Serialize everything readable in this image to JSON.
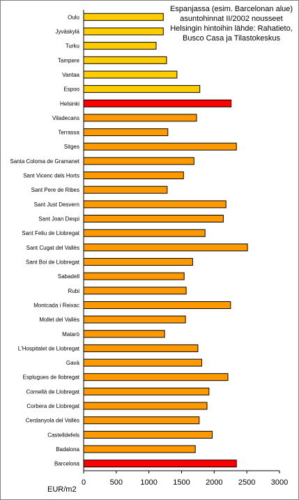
{
  "chart_data": {
    "type": "bar",
    "orientation": "horizontal",
    "annotation_lines": [
      "Espanjassa (esim. Barcelonan alue)",
      "asuntohinnat II/2002 nousseet",
      "Helsingin hintoihin lähde: Rahatieto,",
      "Busco Casa ja Tilastokeskus"
    ],
    "xlabel": "EUR/m2",
    "xlim": [
      0,
      3000
    ],
    "xticks": [
      "0",
      "500",
      "1000",
      "1500",
      "2000",
      "2500",
      "3000"
    ],
    "grid": false,
    "categories": [
      "Oulu",
      "Jyväskylä",
      "Turku",
      "Tampere",
      "Vantaa",
      "Espoo",
      "Helsinki",
      "Viladecans",
      "Terrassa",
      "Sitges",
      "Santa Coloma de Gramanet",
      "Sant Vicenc dels Horts",
      "Sant Pere de Ribes",
      "Sant Just Desvern",
      "Sant Joan Despi",
      "Sant Feliu de Llobregat",
      "Sant Cugat del Vallès",
      "Sant Boi de Llobregat",
      "Sabadell",
      "Rubi",
      "Montcada i Reixac",
      "Mollet del Vallès",
      "Matarò",
      "L'Hospitalet de Llobregat",
      "Gavà",
      "Esplugues de llobregat",
      "Cornellà de Llobregat",
      "Corbera de Llobregat",
      "Cerdanyola del Vallès",
      "Castelldefels",
      "Badalona",
      "Barcelona"
    ],
    "values": [
      1220,
      1220,
      1110,
      1270,
      1430,
      1780,
      2260,
      1730,
      1290,
      2340,
      1690,
      1530,
      1280,
      2180,
      2140,
      1860,
      2510,
      1670,
      1540,
      1570,
      2250,
      1560,
      1240,
      1750,
      1810,
      2210,
      1920,
      1890,
      1770,
      1970,
      1710,
      2340
    ],
    "colors": [
      "yellow",
      "yellow",
      "yellow",
      "yellow",
      "yellow",
      "yellow",
      "red",
      "orange",
      "orange",
      "orange",
      "orange",
      "orange",
      "orange",
      "orange",
      "orange",
      "orange",
      "orange",
      "orange",
      "orange",
      "orange",
      "orange",
      "orange",
      "orange",
      "orange",
      "orange",
      "orange",
      "orange",
      "orange",
      "orange",
      "orange",
      "orange",
      "red"
    ],
    "palette": {
      "yellow": "#ffcc00",
      "orange": "#ff9900",
      "red": "#ff0000",
      "outline": "#000000"
    }
  }
}
